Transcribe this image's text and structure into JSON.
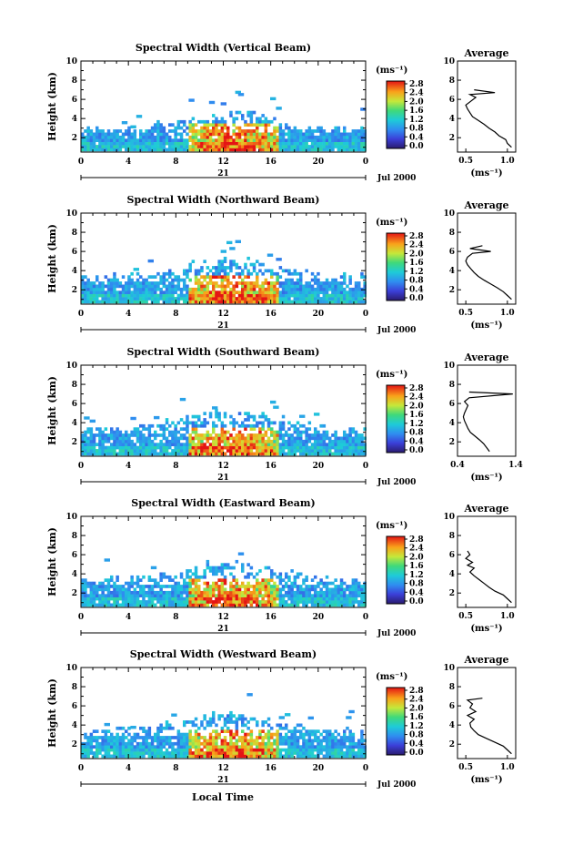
{
  "figure": {
    "xaxis_title": "Local Time",
    "date_label": "Jul 2000",
    "day_label": "21",
    "avg_title": "Average",
    "avg_xlabel": "(ms⁻¹)",
    "colorbar_unit": "(ms⁻¹)"
  },
  "chart_data": [
    {
      "type": "heatmap",
      "title": "Spectral Width (Vertical Beam)",
      "ylabel": "Height (km)",
      "xlabel": "Local Time",
      "xticks": [
        "0",
        "4",
        "8",
        "12",
        "16",
        "20",
        "0"
      ],
      "yticks": [
        "2",
        "4",
        "6",
        "8",
        "10"
      ],
      "xlim": [
        0,
        24
      ],
      "ylim": [
        0.5,
        10
      ],
      "colorbar": {
        "label": "(ms⁻¹)",
        "ticks": [
          "0.0",
          "0.4",
          "0.8",
          "1.2",
          "1.6",
          "2.0",
          "2.4",
          "2.8"
        ],
        "range": [
          0,
          2.8
        ]
      },
      "avg_profile": {
        "title": "Average",
        "xlabel": "(ms⁻¹)",
        "xticks": [
          "0.5",
          "1.0"
        ],
        "xlim": [
          0.4,
          1.1
        ],
        "points": [
          [
            1.05,
            1.0
          ],
          [
            1.0,
            1.4
          ],
          [
            0.98,
            1.8
          ],
          [
            0.9,
            2.2
          ],
          [
            0.85,
            2.6
          ],
          [
            0.78,
            3.0
          ],
          [
            0.72,
            3.4
          ],
          [
            0.65,
            3.8
          ],
          [
            0.58,
            4.2
          ],
          [
            0.55,
            4.6
          ],
          [
            0.52,
            5.0
          ],
          [
            0.5,
            5.4
          ],
          [
            0.56,
            5.8
          ],
          [
            0.62,
            6.2
          ],
          [
            0.55,
            6.5
          ],
          [
            0.85,
            6.7
          ],
          [
            0.6,
            7.0
          ]
        ]
      }
    },
    {
      "type": "heatmap",
      "title": "Spectral Width (Northward Beam)",
      "ylabel": "Height (km)",
      "xlabel": "Local Time",
      "xticks": [
        "0",
        "4",
        "8",
        "12",
        "16",
        "20",
        "0"
      ],
      "yticks": [
        "2",
        "4",
        "6",
        "8",
        "10"
      ],
      "xlim": [
        0,
        24
      ],
      "ylim": [
        0.5,
        10
      ],
      "colorbar": {
        "label": "(ms⁻¹)",
        "ticks": [
          "0.0",
          "0.4",
          "0.8",
          "1.2",
          "1.6",
          "2.0",
          "2.4",
          "2.8"
        ],
        "range": [
          0,
          2.8
        ]
      },
      "avg_profile": {
        "title": "Average",
        "xlabel": "(ms⁻¹)",
        "xticks": [
          "0.5",
          "1.0"
        ],
        "xlim": [
          0.4,
          1.1
        ],
        "points": [
          [
            1.05,
            1.0
          ],
          [
            1.0,
            1.4
          ],
          [
            0.95,
            1.8
          ],
          [
            0.88,
            2.2
          ],
          [
            0.8,
            2.6
          ],
          [
            0.72,
            3.0
          ],
          [
            0.65,
            3.4
          ],
          [
            0.6,
            3.8
          ],
          [
            0.56,
            4.2
          ],
          [
            0.52,
            4.6
          ],
          [
            0.5,
            5.0
          ],
          [
            0.52,
            5.4
          ],
          [
            0.58,
            5.8
          ],
          [
            0.8,
            6.0
          ],
          [
            0.55,
            6.3
          ],
          [
            0.7,
            6.6
          ]
        ]
      }
    },
    {
      "type": "heatmap",
      "title": "Spectral Width (Southward Beam)",
      "ylabel": "Height (km)",
      "xlabel": "Local Time",
      "xticks": [
        "0",
        "4",
        "8",
        "12",
        "16",
        "20",
        "0"
      ],
      "yticks": [
        "2",
        "4",
        "6",
        "8",
        "10"
      ],
      "xlim": [
        0,
        24
      ],
      "ylim": [
        0.5,
        10
      ],
      "colorbar": {
        "label": "(ms⁻¹)",
        "ticks": [
          "0.0",
          "0.4",
          "0.8",
          "1.2",
          "1.6",
          "2.0",
          "2.4",
          "2.8"
        ],
        "range": [
          0,
          2.8
        ]
      },
      "avg_profile": {
        "title": "Average",
        "xlabel": "(ms⁻¹)",
        "xticks": [
          "0.4",
          "1.4"
        ],
        "xlim": [
          0.4,
          1.4
        ],
        "points": [
          [
            0.95,
            1.0
          ],
          [
            0.9,
            1.4
          ],
          [
            0.85,
            1.8
          ],
          [
            0.78,
            2.2
          ],
          [
            0.7,
            2.6
          ],
          [
            0.62,
            3.0
          ],
          [
            0.58,
            3.4
          ],
          [
            0.55,
            3.8
          ],
          [
            0.52,
            4.2
          ],
          [
            0.5,
            4.6
          ],
          [
            0.52,
            5.0
          ],
          [
            0.55,
            5.4
          ],
          [
            0.58,
            5.8
          ],
          [
            0.52,
            6.2
          ],
          [
            0.6,
            6.6
          ],
          [
            1.35,
            7.0
          ],
          [
            0.6,
            7.2
          ]
        ]
      }
    },
    {
      "type": "heatmap",
      "title": "Spectral Width (Eastward Beam)",
      "ylabel": "Height (km)",
      "xlabel": "Local Time",
      "xticks": [
        "0",
        "4",
        "8",
        "12",
        "16",
        "20",
        "0"
      ],
      "yticks": [
        "2",
        "4",
        "6",
        "8",
        "10"
      ],
      "xlim": [
        0,
        24
      ],
      "ylim": [
        0.5,
        10
      ],
      "colorbar": {
        "label": "(ms⁻¹)",
        "ticks": [
          "0.0",
          "0.4",
          "0.8",
          "1.2",
          "1.6",
          "2.0",
          "2.4",
          "2.8"
        ],
        "range": [
          0,
          2.8
        ]
      },
      "avg_profile": {
        "title": "Average",
        "xlabel": "(ms⁻¹)",
        "xticks": [
          "0.5",
          "1.0"
        ],
        "xlim": [
          0.4,
          1.1
        ],
        "points": [
          [
            1.05,
            1.0
          ],
          [
            1.0,
            1.4
          ],
          [
            0.95,
            1.8
          ],
          [
            0.85,
            2.2
          ],
          [
            0.78,
            2.6
          ],
          [
            0.72,
            3.0
          ],
          [
            0.66,
            3.4
          ],
          [
            0.6,
            3.8
          ],
          [
            0.55,
            4.2
          ],
          [
            0.6,
            4.6
          ],
          [
            0.52,
            4.9
          ],
          [
            0.58,
            5.2
          ],
          [
            0.5,
            5.6
          ],
          [
            0.55,
            6.0
          ],
          [
            0.52,
            6.4
          ]
        ]
      }
    },
    {
      "type": "heatmap",
      "title": "Spectral Width (Westward Beam)",
      "ylabel": "Height (km)",
      "xlabel": "Local Time",
      "xticks": [
        "0",
        "4",
        "8",
        "12",
        "16",
        "20",
        "0"
      ],
      "yticks": [
        "2",
        "4",
        "6",
        "8",
        "10"
      ],
      "xlim": [
        0,
        24
      ],
      "ylim": [
        0.5,
        10
      ],
      "colorbar": {
        "label": "(ms⁻¹)",
        "ticks": [
          "0.0",
          "0.4",
          "0.8",
          "1.2",
          "1.6",
          "2.0",
          "2.4",
          "2.8"
        ],
        "range": [
          0,
          2.8
        ]
      },
      "avg_profile": {
        "title": "Average",
        "xlabel": "(ms⁻¹)",
        "xticks": [
          "0.5",
          "1.0"
        ],
        "xlim": [
          0.4,
          1.1
        ],
        "points": [
          [
            1.05,
            1.0
          ],
          [
            1.0,
            1.4
          ],
          [
            0.95,
            1.8
          ],
          [
            0.85,
            2.2
          ],
          [
            0.75,
            2.6
          ],
          [
            0.65,
            3.0
          ],
          [
            0.6,
            3.4
          ],
          [
            0.56,
            3.8
          ],
          [
            0.55,
            4.2
          ],
          [
            0.6,
            4.6
          ],
          [
            0.52,
            5.0
          ],
          [
            0.62,
            5.4
          ],
          [
            0.55,
            5.8
          ],
          [
            0.58,
            6.2
          ],
          [
            0.52,
            6.6
          ],
          [
            0.7,
            6.8
          ]
        ]
      }
    }
  ]
}
